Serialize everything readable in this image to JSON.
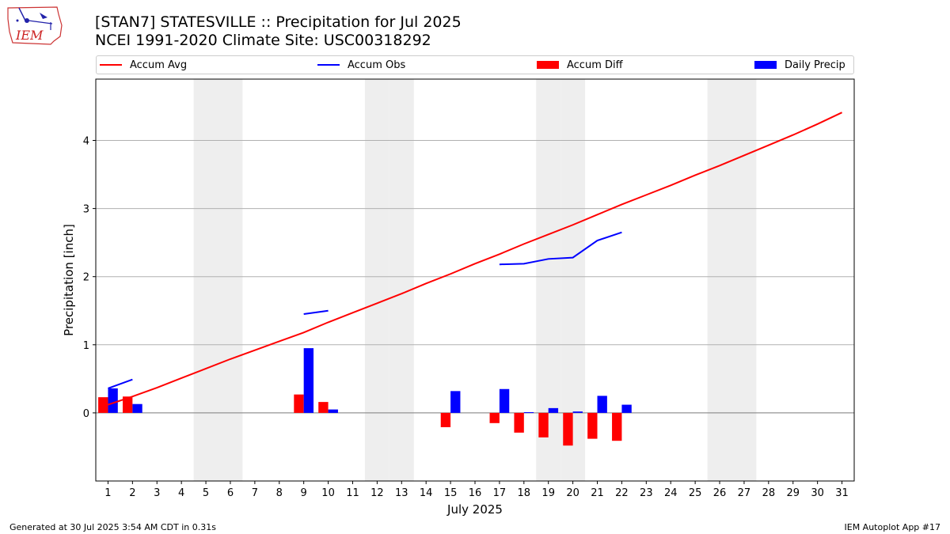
{
  "header": {
    "logo_text": "IEM",
    "title": "[STAN7] STATESVILLE :: Precipitation for Jul 2025",
    "subtitle": "NCEI 1991-2020 Climate Site: USC00318292"
  },
  "footer": {
    "generated": "Generated at 30 Jul 2025 3:54 AM CDT in 0.31s",
    "app": "IEM Autoplot App #17"
  },
  "colors": {
    "avg": "#ff0000",
    "obs": "#0000ff",
    "diff": "#ff0000",
    "daily": "#0000ff",
    "weekend": "#eeeeee",
    "grid": "#b0b0b0"
  },
  "chart_data": {
    "type": "bar",
    "title": "[STAN7] STATESVILLE :: Precipitation for Jul 2025",
    "subtitle": "NCEI 1991-2020 Climate Site: USC00318292",
    "xlabel": "July 2025",
    "ylabel": "Precipitation [inch]",
    "xlim": [
      0.5,
      31.5
    ],
    "ylim": [
      -1.0,
      4.9
    ],
    "yticks": [
      0,
      1,
      2,
      3,
      4
    ],
    "x": [
      1,
      2,
      3,
      4,
      5,
      6,
      7,
      8,
      9,
      10,
      11,
      12,
      13,
      14,
      15,
      16,
      17,
      18,
      19,
      20,
      21,
      22,
      23,
      24,
      25,
      26,
      27,
      28,
      29,
      30,
      31
    ],
    "weekend_days": [
      5,
      6,
      12,
      13,
      19,
      20,
      26,
      27
    ],
    "grid": "y",
    "legend_position": "top",
    "series": [
      {
        "name": "Accum Avg",
        "kind": "line",
        "color": "#ff0000",
        "values": [
          0.12,
          0.24,
          0.37,
          0.51,
          0.65,
          0.79,
          0.92,
          1.05,
          1.18,
          1.33,
          1.47,
          1.61,
          1.75,
          1.9,
          2.04,
          2.19,
          2.33,
          2.48,
          2.62,
          2.76,
          2.91,
          3.06,
          3.2,
          3.34,
          3.49,
          3.63,
          3.78,
          3.93,
          4.08,
          4.24,
          4.41
        ]
      },
      {
        "name": "Accum Obs",
        "kind": "line",
        "color": "#0000ff",
        "values": [
          0.36,
          0.49,
          null,
          null,
          null,
          null,
          null,
          null,
          1.45,
          1.5,
          null,
          null,
          null,
          null,
          null,
          null,
          2.18,
          2.19,
          2.26,
          2.28,
          2.53,
          2.65,
          null,
          null,
          null,
          null,
          null,
          null,
          null,
          null,
          null
        ]
      },
      {
        "name": "Accum Diff",
        "kind": "bar",
        "color": "#ff0000",
        "values": [
          0.23,
          0.24,
          null,
          null,
          null,
          null,
          null,
          null,
          0.27,
          0.16,
          null,
          null,
          null,
          null,
          -0.21,
          null,
          -0.15,
          -0.29,
          -0.36,
          -0.48,
          -0.38,
          -0.41,
          null,
          null,
          null,
          null,
          null,
          null,
          null,
          null,
          null
        ]
      },
      {
        "name": "Daily Precip",
        "kind": "bar",
        "color": "#0000ff",
        "values": [
          0.36,
          0.13,
          null,
          null,
          null,
          null,
          null,
          null,
          0.95,
          0.05,
          null,
          null,
          null,
          null,
          0.32,
          null,
          0.35,
          0.01,
          0.07,
          0.02,
          0.25,
          0.12,
          null,
          null,
          null,
          null,
          null,
          null,
          null,
          null,
          null
        ]
      }
    ]
  }
}
